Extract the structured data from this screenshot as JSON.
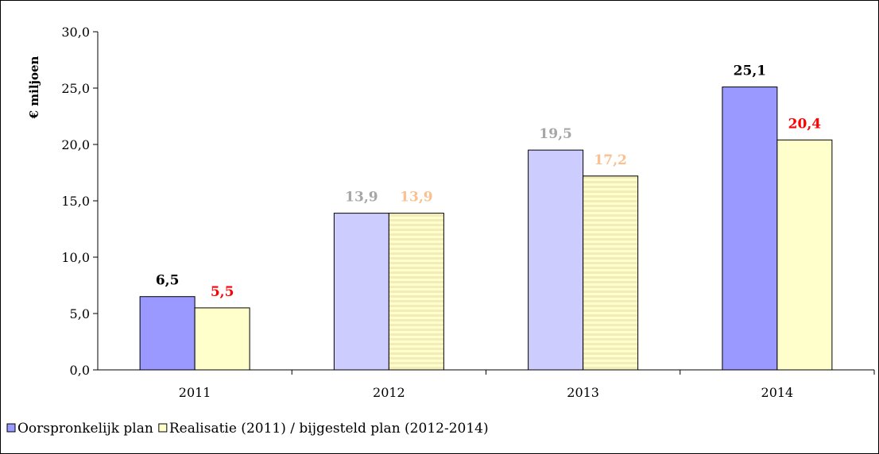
{
  "chart_data": {
    "type": "bar",
    "ylabel": "€ miljoen",
    "ylim": [
      0,
      30
    ],
    "ytick_labels": [
      "0,0",
      "5,0",
      "10,0",
      "15,0",
      "20,0",
      "25,0",
      "30,0"
    ],
    "categories": [
      "2011",
      "2012",
      "2013",
      "2014"
    ],
    "grid": false,
    "legend_position": "bottom-left",
    "series": [
      {
        "name": "Oorspronkelijk plan",
        "values": [
          6.5,
          13.9,
          19.5,
          25.1
        ],
        "labels": [
          "6,5",
          "13,9",
          "19,5",
          "25,1"
        ],
        "fill_colors": [
          "#9999ff",
          "#ccccff",
          "#ccccff",
          "#9999ff"
        ],
        "label_colors": [
          "#000000",
          "#a6a6a6",
          "#a6a6a6",
          "#000000"
        ],
        "hatched": [
          false,
          false,
          false,
          false
        ]
      },
      {
        "name": "Realisatie (2011) / bijgesteld plan (2012-2014)",
        "values": [
          5.5,
          13.9,
          17.2,
          20.4
        ],
        "labels": [
          "5,5",
          "13,9",
          "17,2",
          "20,4"
        ],
        "fill_colors": [
          "#ffffcc",
          "#ffffcc",
          "#ffffcc",
          "#ffffcc"
        ],
        "label_colors": [
          "#ff0000",
          "#fac090",
          "#fac090",
          "#ff0000"
        ],
        "hatched": [
          false,
          true,
          true,
          false
        ]
      }
    ],
    "legend": [
      {
        "label": "Oorspronkelijk plan",
        "color": "#9999ff"
      },
      {
        "label": "Realisatie (2011) / bijgesteld plan (2012-2014)",
        "color": "#ffffcc"
      }
    ]
  }
}
